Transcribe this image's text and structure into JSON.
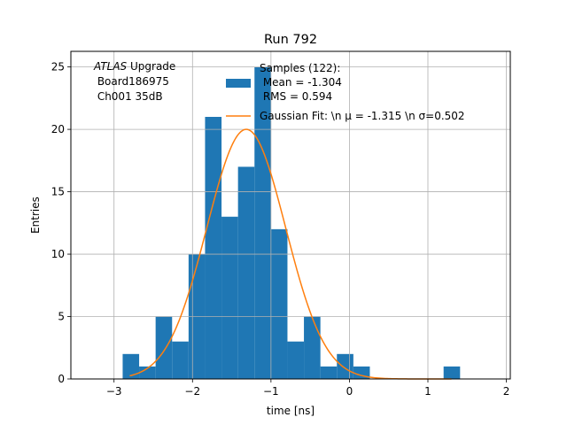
{
  "chart_data": {
    "type": "bar",
    "title": "Run 792",
    "xlabel": "time [ns]",
    "ylabel": "Entries",
    "xlim": [
      -3.55,
      2.05
    ],
    "ylim": [
      0,
      26.25
    ],
    "grid": true,
    "xticks": [
      -3,
      -2,
      -1,
      0,
      1,
      2
    ],
    "xtick_labels": [
      "−3",
      "−2",
      "−1",
      "0",
      "1",
      "2"
    ],
    "yticks": [
      0,
      5,
      10,
      15,
      20,
      25
    ],
    "ytick_labels": [
      "0",
      "5",
      "10",
      "15",
      "20",
      "25"
    ],
    "histogram": {
      "color": "#1f77b4",
      "bins": [
        {
          "x0": -2.89,
          "x1": -2.68,
          "count": 2
        },
        {
          "x0": -2.68,
          "x1": -2.47,
          "count": 1
        },
        {
          "x0": -2.47,
          "x1": -2.26,
          "count": 5
        },
        {
          "x0": -2.26,
          "x1": -2.05,
          "count": 3
        },
        {
          "x0": -2.05,
          "x1": -1.84,
          "count": 10
        },
        {
          "x0": -1.84,
          "x1": -1.63,
          "count": 21
        },
        {
          "x0": -1.63,
          "x1": -1.42,
          "count": 13
        },
        {
          "x0": -1.42,
          "x1": -1.21,
          "count": 17
        },
        {
          "x0": -1.21,
          "x1": -1.0,
          "count": 25
        },
        {
          "x0": -1.0,
          "x1": -0.79,
          "count": 12
        },
        {
          "x0": -0.79,
          "x1": -0.58,
          "count": 3
        },
        {
          "x0": -0.58,
          "x1": -0.37,
          "count": 5
        },
        {
          "x0": -0.37,
          "x1": -0.16,
          "count": 1
        },
        {
          "x0": -0.16,
          "x1": 0.05,
          "count": 2
        },
        {
          "x0": 0.05,
          "x1": 0.26,
          "count": 1
        },
        {
          "x0": 1.2,
          "x1": 1.41,
          "count": 1
        }
      ]
    },
    "fit": {
      "color": "#ff7f0e",
      "amplitude": 20,
      "mu": -1.315,
      "sigma": 0.502,
      "x_range": [
        -2.8,
        1.3
      ]
    },
    "legend": {
      "placement": "top-right",
      "hist_label_lines": [
        "Samples (122):",
        " Mean = -1.304",
        " RMS = 0.594"
      ],
      "fit_label": "Gaussian Fit: \\n μ = -1.315 \\n σ=0.502"
    },
    "annotation": {
      "italic": "ATLAS",
      "rest": " Upgrade",
      "line2": " Board186975",
      "line3": " Ch001 35dB"
    }
  }
}
